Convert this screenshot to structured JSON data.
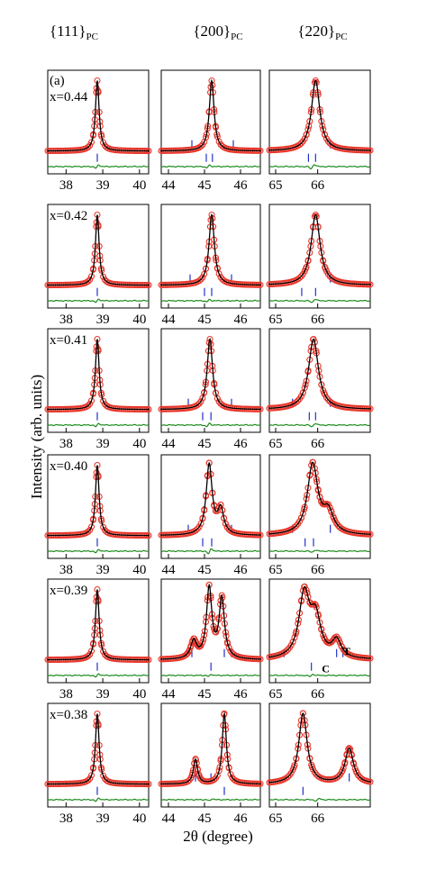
{
  "chart_data": {
    "type": "line",
    "ylabel": "Intensity (arb. units)",
    "xlabel": "2θ (degree)",
    "panel_label": "(a)",
    "column_headers": [
      {
        "main": "{111}",
        "sub": "PC"
      },
      {
        "main": "{200}",
        "sub": "PC"
      },
      {
        "main": "{220}",
        "sub": "PC"
      }
    ],
    "row_labels": [
      "x=0.44",
      "x=0.42",
      "x=0.41",
      "x=0.40",
      "x=0.39",
      "x=0.38"
    ],
    "columns": [
      {
        "xlim": [
          37.5,
          40.25
        ],
        "ticks": [
          38,
          39,
          40
        ],
        "tick_labels": [
          "38",
          "39",
          "40"
        ]
      },
      {
        "xlim": [
          43.8,
          46.55
        ],
        "ticks": [
          44,
          45,
          46
        ],
        "tick_labels": [
          "44",
          "45",
          "46"
        ]
      },
      {
        "xlim": [
          64.85,
          67.25
        ],
        "ticks": [
          65,
          66
        ],
        "tick_labels": [
          "65",
          "66"
        ]
      }
    ],
    "peak_annotations": {
      "row": 4,
      "col": 2,
      "labels": [
        "T",
        "C"
      ]
    },
    "colors": {
      "observed": "#e8372c",
      "calculated": "#000000",
      "difference": "#1a8a1a",
      "bragg": "#2233cc"
    },
    "series_keys": [
      "observed",
      "calculated",
      "difference",
      "bragg"
    ],
    "panels": [
      [
        {
          "peaks": [
            {
              "c": 38.85,
              "w": 0.06,
              "a": 1.0
            }
          ],
          "bragg": [
            38.85
          ],
          "braggShort": [],
          "diff": [
            {
              "c": 38.85,
              "a": 0.3
            }
          ]
        },
        {
          "peaks": [
            {
              "c": 45.2,
              "w": 0.08,
              "a": 1.0
            }
          ],
          "bragg": [
            45.05,
            45.22
          ],
          "braggShort": [
            44.65,
            45.8
          ],
          "diff": [
            {
              "c": 45.1,
              "a": 0.25
            }
          ]
        },
        {
          "peaks": [
            {
              "c": 65.95,
              "w": 0.12,
              "a": 1.0
            }
          ],
          "bragg": [
            65.78,
            65.95
          ],
          "braggShort": [
            66.3
          ],
          "diff": [
            {
              "c": 65.88,
              "a": 0.4
            }
          ]
        }
      ],
      [
        {
          "peaks": [
            {
              "c": 38.85,
              "w": 0.06,
              "a": 1.0
            }
          ],
          "bragg": [
            38.85
          ],
          "braggShort": [],
          "diff": [
            {
              "c": 38.85,
              "a": 0.3
            }
          ]
        },
        {
          "peaks": [
            {
              "c": 45.2,
              "w": 0.09,
              "a": 1.0
            }
          ],
          "bragg": [
            45.0,
            45.2
          ],
          "braggShort": [
            44.6,
            45.75
          ],
          "diff": [
            {
              "c": 45.1,
              "a": 0.2
            }
          ]
        },
        {
          "peaks": [
            {
              "c": 65.95,
              "w": 0.13,
              "a": 1.0
            }
          ],
          "bragg": [
            65.62,
            65.95
          ],
          "braggShort": [
            66.3
          ],
          "diff": [
            {
              "c": 65.9,
              "a": 0.3
            }
          ]
        }
      ],
      [
        {
          "peaks": [
            {
              "c": 38.85,
              "w": 0.06,
              "a": 1.0
            }
          ],
          "bragg": [
            38.85
          ],
          "braggShort": [],
          "diff": [
            {
              "c": 38.85,
              "a": 0.3
            }
          ]
        },
        {
          "peaks": [
            {
              "c": 45.15,
              "w": 0.09,
              "a": 1.0
            }
          ],
          "bragg": [
            44.95,
            45.18
          ],
          "braggShort": [
            44.55,
            45.75
          ],
          "diff": [
            {
              "c": 45.1,
              "a": 0.3
            }
          ]
        },
        {
          "peaks": [
            {
              "c": 65.9,
              "w": 0.14,
              "a": 1.0
            }
          ],
          "bragg": [
            65.8,
            65.95
          ],
          "braggShort": [
            65.4,
            66.3
          ],
          "diff": [
            {
              "c": 65.9,
              "a": 0.3
            }
          ]
        }
      ],
      [
        {
          "peaks": [
            {
              "c": 38.85,
              "w": 0.06,
              "a": 1.0
            }
          ],
          "bragg": [
            38.85
          ],
          "braggShort": [],
          "diff": [
            {
              "c": 38.85,
              "a": 0.3
            }
          ]
        },
        {
          "peaks": [
            {
              "c": 45.13,
              "w": 0.1,
              "a": 1.0
            },
            {
              "c": 45.45,
              "w": 0.1,
              "a": 0.35
            }
          ],
          "bragg": [
            44.95,
            45.2
          ],
          "braggShort": [
            44.55,
            45.75
          ],
          "diff": [
            {
              "c": 45.15,
              "a": 0.5
            }
          ]
        },
        {
          "peaks": [
            {
              "c": 65.88,
              "w": 0.15,
              "a": 1.0
            },
            {
              "c": 66.25,
              "w": 0.15,
              "a": 0.3
            }
          ],
          "bragg": [
            65.7,
            65.9
          ],
          "braggShort": [
            65.4,
            66.3
          ],
          "diff": [
            {
              "c": 65.9,
              "a": 0.2
            }
          ]
        }
      ],
      [
        {
          "peaks": [
            {
              "c": 38.85,
              "w": 0.06,
              "a": 1.0
            }
          ],
          "bragg": [
            38.85
          ],
          "braggShort": [],
          "diff": [
            {
              "c": 38.85,
              "a": 0.3
            }
          ]
        },
        {
          "peaks": [
            {
              "c": 45.13,
              "w": 0.09,
              "a": 1.0
            },
            {
              "c": 45.48,
              "w": 0.09,
              "a": 0.85
            },
            {
              "c": 44.7,
              "w": 0.1,
              "a": 0.25
            }
          ],
          "bragg": [
            45.18
          ],
          "braggShort": [
            44.65,
            45.55,
            45.75
          ],
          "diff": [
            {
              "c": 45.15,
              "a": 0.2
            }
          ]
        },
        {
          "peaks": [
            {
              "c": 65.68,
              "w": 0.15,
              "a": 0.9
            },
            {
              "c": 65.95,
              "w": 0.15,
              "a": 0.55
            },
            {
              "c": 66.45,
              "w": 0.13,
              "a": 0.25
            }
          ],
          "bragg": [
            65.85
          ],
          "braggShort": [
            65.2,
            66.45,
            66.6
          ],
          "diff": [
            {
              "c": 65.85,
              "a": 0.2
            }
          ]
        }
      ],
      [
        {
          "peaks": [
            {
              "c": 38.85,
              "w": 0.06,
              "a": 1.0
            }
          ],
          "bragg": [
            38.85
          ],
          "braggShort": [],
          "diff": [
            {
              "c": 38.85,
              "a": 0.3
            }
          ]
        },
        {
          "peaks": [
            {
              "c": 45.55,
              "w": 0.07,
              "a": 1.0
            },
            {
              "c": 44.75,
              "w": 0.07,
              "a": 0.35
            }
          ],
          "bragg": [
            45.55
          ],
          "braggShort": [
            44.75,
            45.18
          ],
          "diff": [
            {
              "c": 45.18,
              "a": 0.2
            }
          ]
        },
        {
          "peaks": [
            {
              "c": 65.65,
              "w": 0.12,
              "a": 1.0
            },
            {
              "c": 66.75,
              "w": 0.12,
              "a": 0.5
            }
          ],
          "bragg": [
            65.65
          ],
          "braggShort": [
            66.75
          ],
          "diff": [
            {
              "c": 66.0,
              "a": 0.2
            }
          ]
        }
      ]
    ]
  }
}
